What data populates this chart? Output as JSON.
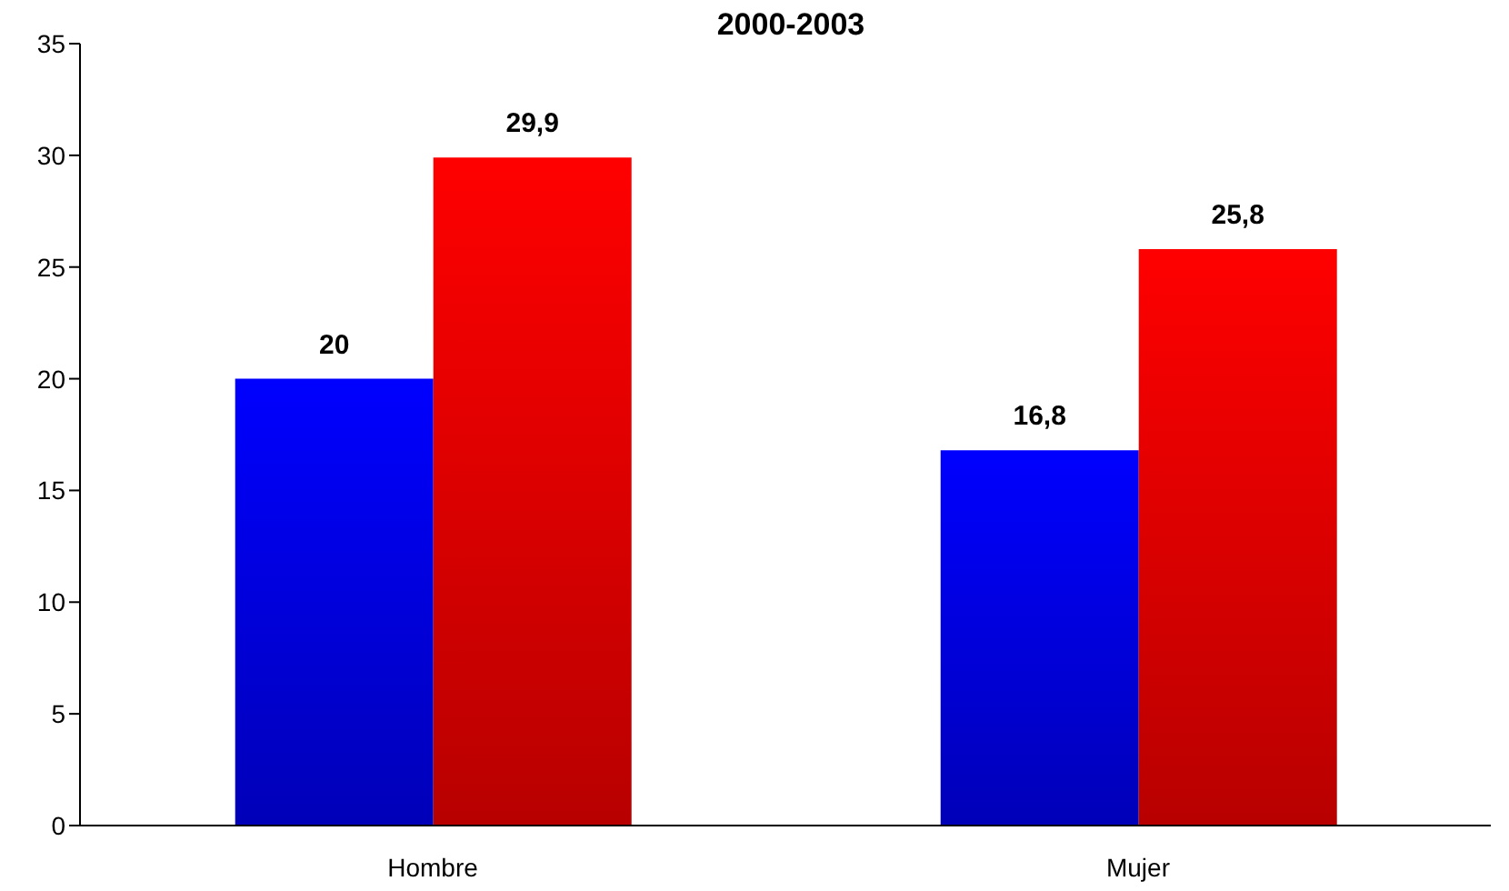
{
  "chart_data": {
    "type": "bar",
    "title": "2000-2003",
    "categories": [
      "Hombre",
      "Mujer"
    ],
    "series": [
      {
        "color": "#0000ff",
        "values": [
          20,
          16.8
        ],
        "value_labels": [
          "20",
          "16,8"
        ]
      },
      {
        "color": "#ff0000",
        "values": [
          29.9,
          25.8
        ],
        "value_labels": [
          "29,9",
          "25,8"
        ]
      }
    ],
    "ylim": [
      0,
      35
    ],
    "yticks": [
      0,
      5,
      10,
      15,
      20,
      25,
      30,
      35
    ],
    "grid": false,
    "legend": false
  }
}
